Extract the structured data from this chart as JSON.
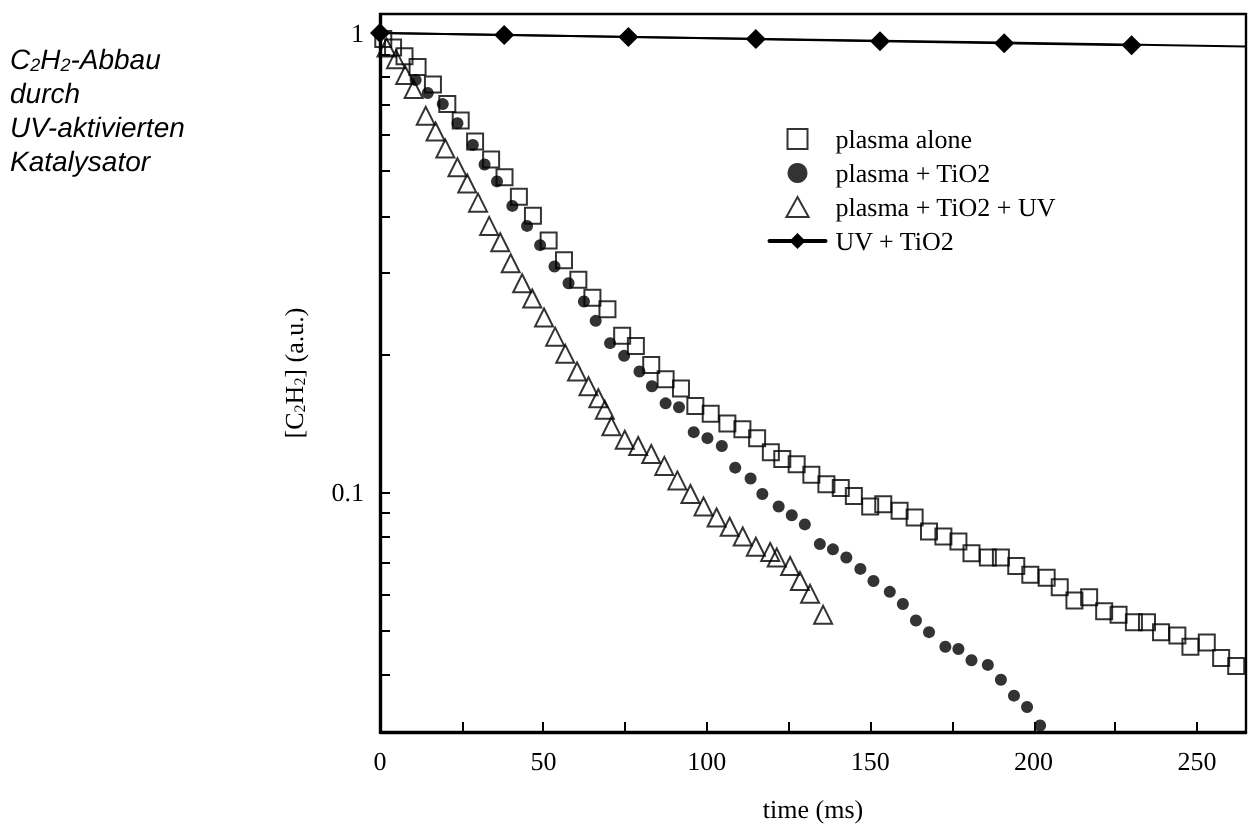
{
  "chart_data": {
    "type": "scatter",
    "title": "C$_{2}$H$_{2}$-Abbau durch UV-aktivierten Katalysator",
    "xlabel": "time (ms)",
    "ylabel": "[C$_{2}$H$_{2}$] (a.u.)",
    "log": "y",
    "grid": false,
    "legend": "top right",
    "line_style": "solid",
    "xlim": [
      0,
      265
    ],
    "xticks": [
      0,
      {
        "value": 25,
        "label": null
      },
      50,
      {
        "value": 75,
        "label": null
      },
      100,
      {
        "value": 125,
        "label": null
      },
      150,
      {
        "value": 175,
        "label": null
      },
      200,
      {
        "value": 225,
        "label": null
      },
      250
    ],
    "ylim": [
      0.03,
      1.1
    ],
    "yticks": [
      {
        "value": 0.04,
        "label": null
      },
      {
        "value": 0.05,
        "label": null
      },
      {
        "value": 0.06,
        "label": null
      },
      {
        "value": 0.07,
        "label": null
      },
      {
        "value": 0.08,
        "label": null
      },
      {
        "value": 0.09,
        "label": null
      },
      0.1,
      {
        "value": 0.2,
        "label": null
      },
      {
        "value": 0.3,
        "label": null
      },
      {
        "value": 0.4,
        "label": null
      },
      {
        "value": 0.5,
        "label": null
      },
      {
        "value": 0.6,
        "label": null
      },
      {
        "value": 0.7,
        "label": null
      },
      {
        "value": 0.8,
        "label": null
      },
      {
        "value": 0.9,
        "label": null
      },
      1
    ],
    "series": [
      {
        "name": "plasma alone",
        "marker": "square",
        "color": "#000000",
        "x": [
          1,
          4,
          7.5,
          11.5,
          16.2,
          20.6,
          24.7,
          29.1,
          34,
          38.1,
          42.5,
          46.8,
          51.6,
          56.3,
          60.7,
          65,
          69.6,
          74.1,
          78.3,
          83,
          87.4,
          92.1,
          96.5,
          101.2,
          106.3,
          110.9,
          115.4,
          119.6,
          123.1,
          127.5,
          132,
          136.6,
          141,
          145,
          150,
          154,
          159,
          163.6,
          168,
          172.4,
          177,
          181,
          186,
          190,
          194.7,
          199,
          204,
          208,
          212.5,
          217,
          221.6,
          226,
          230.7,
          234.7,
          239,
          244,
          248,
          253,
          257.4,
          262
        ],
        "values": [
          0.97,
          0.93,
          0.89,
          0.843,
          0.772,
          0.7,
          0.645,
          0.58,
          0.53,
          0.485,
          0.44,
          0.4,
          0.353,
          0.32,
          0.29,
          0.265,
          0.25,
          0.219,
          0.208,
          0.189,
          0.176,
          0.168,
          0.154,
          0.148,
          0.141,
          0.137,
          0.131,
          0.122,
          0.118,
          0.115,
          0.109,
          0.104,
          0.102,
          0.098,
          0.093,
          0.094,
          0.091,
          0.088,
          0.082,
          0.08,
          0.078,
          0.0735,
          0.072,
          0.072,
          0.069,
          0.066,
          0.065,
          0.062,
          0.058,
          0.059,
          0.055,
          0.054,
          0.052,
          0.052,
          0.0495,
          0.0487,
          0.046,
          0.047,
          0.0435,
          0.0418
        ]
      },
      {
        "name": "plasma + TiO2",
        "marker": "circle",
        "color": "#000000",
        "x": [
          10.9,
          14.6,
          19.2,
          23.7,
          28.4,
          32,
          35.8,
          40.5,
          45,
          49,
          53.4,
          57.7,
          62.4,
          66,
          70.4,
          74.7,
          79.4,
          83.2,
          87.4,
          91.5,
          96,
          100.2,
          104.6,
          108.7,
          113.4,
          117,
          122,
          126,
          130,
          134.6,
          138.6,
          142.7,
          147,
          151,
          156,
          160,
          164,
          168,
          173,
          177,
          181,
          186,
          190,
          194,
          198,
          202
        ],
        "values": [
          0.79,
          0.74,
          0.7,
          0.636,
          0.57,
          0.517,
          0.475,
          0.42,
          0.38,
          0.345,
          0.31,
          0.285,
          0.26,
          0.236,
          0.211,
          0.198,
          0.183,
          0.17,
          0.156,
          0.153,
          0.135,
          0.131,
          0.126,
          0.113,
          0.107,
          0.099,
          0.093,
          0.089,
          0.085,
          0.077,
          0.075,
          0.072,
          0.068,
          0.064,
          0.0606,
          0.057,
          0.0525,
          0.0495,
          0.046,
          0.0455,
          0.043,
          0.042,
          0.039,
          0.036,
          0.034,
          0.031
        ]
      },
      {
        "name": "plasma + TiO2 + UV",
        "marker": "triangle",
        "color": "#000000",
        "x": [
          2,
          4.9,
          7.7,
          10.3,
          14,
          17,
          20,
          23.7,
          26.7,
          30,
          33.4,
          36.8,
          40,
          43.5,
          46.6,
          50.2,
          53.6,
          56.7,
          60.3,
          63.8,
          66.8,
          68.8,
          70.8,
          74.9,
          79,
          83,
          87,
          91,
          95,
          99,
          103,
          107,
          111,
          115,
          119.4,
          121.4,
          125.5,
          128.5,
          131.6,
          135.6
        ],
        "values": [
          0.93,
          0.877,
          0.81,
          0.755,
          0.66,
          0.61,
          0.56,
          0.51,
          0.47,
          0.427,
          0.38,
          0.35,
          0.315,
          0.285,
          0.264,
          0.24,
          0.218,
          0.2,
          0.183,
          0.17,
          0.16,
          0.151,
          0.139,
          0.13,
          0.126,
          0.121,
          0.114,
          0.106,
          0.099,
          0.093,
          0.088,
          0.084,
          0.08,
          0.076,
          0.074,
          0.072,
          0.069,
          0.064,
          0.06,
          0.054
        ]
      },
      {
        "name": "UV + TiO2",
        "type": "line",
        "marker": "diamond",
        "color": "#000000",
        "x": [
          0,
          38,
          76,
          115,
          153,
          191,
          230
        ],
        "values": [
          1.0,
          0.99,
          0.98,
          0.97,
          0.96,
          0.95,
          0.94
        ]
      },
      {
        "type": "line",
        "marker": "none",
        "color": "#000000",
        "x": [
          0,
          265
        ],
        "values": [
          1.0,
          0.935
        ]
      }
    ]
  }
}
